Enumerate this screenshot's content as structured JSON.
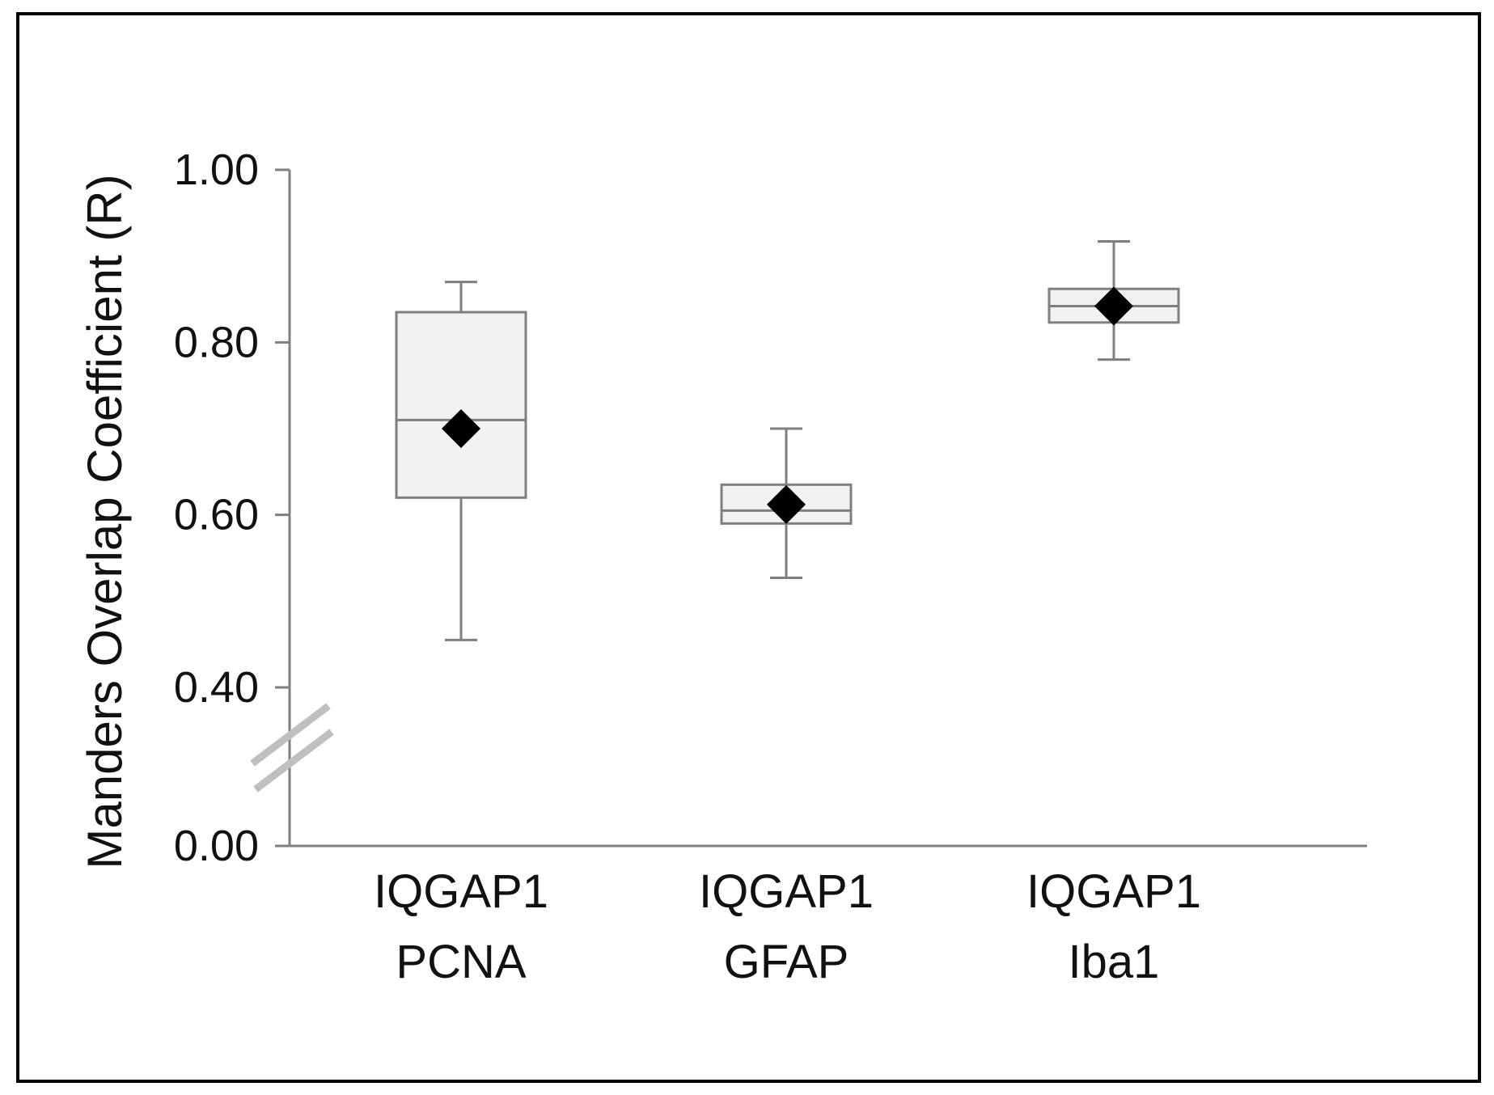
{
  "chart_data": {
    "type": "box",
    "title": "",
    "xlabel": "",
    "ylabel": "Manders Overlap Coefficient  (R)",
    "ylim": [
      0,
      1.0
    ],
    "axis_break": {
      "from": 0.0,
      "to": 0.4
    },
    "yticks": [
      {
        "value": 0.0,
        "label": "0.00"
      },
      {
        "value": 0.4,
        "label": "0.40"
      },
      {
        "value": 0.6,
        "label": "0.60"
      },
      {
        "value": 0.8,
        "label": "0.80"
      },
      {
        "value": 1.0,
        "label": "1.00"
      }
    ],
    "categories": [
      {
        "line1": "IQGAP1",
        "line2": "PCNA"
      },
      {
        "line1": "IQGAP1",
        "line2": "GFAP"
      },
      {
        "line1": "IQGAP1",
        "line2": "Iba1"
      }
    ],
    "boxes": [
      {
        "min": 0.455,
        "q1": 0.62,
        "median": 0.71,
        "q3": 0.835,
        "max": 0.87,
        "mean": 0.7
      },
      {
        "min": 0.527,
        "q1": 0.59,
        "median": 0.605,
        "q3": 0.635,
        "max": 0.7,
        "mean": 0.612
      },
      {
        "min": 0.78,
        "q1": 0.823,
        "median": 0.842,
        "q3": 0.862,
        "max": 0.917,
        "mean": 0.842
      }
    ],
    "colors": {
      "box_fill": "#f2f2f2",
      "box_stroke": "#7f7f7f",
      "mean_marker": "#000000",
      "axis": "#7f7f7f",
      "break_marks": "#bfbfbf",
      "frame": "#000000"
    }
  }
}
